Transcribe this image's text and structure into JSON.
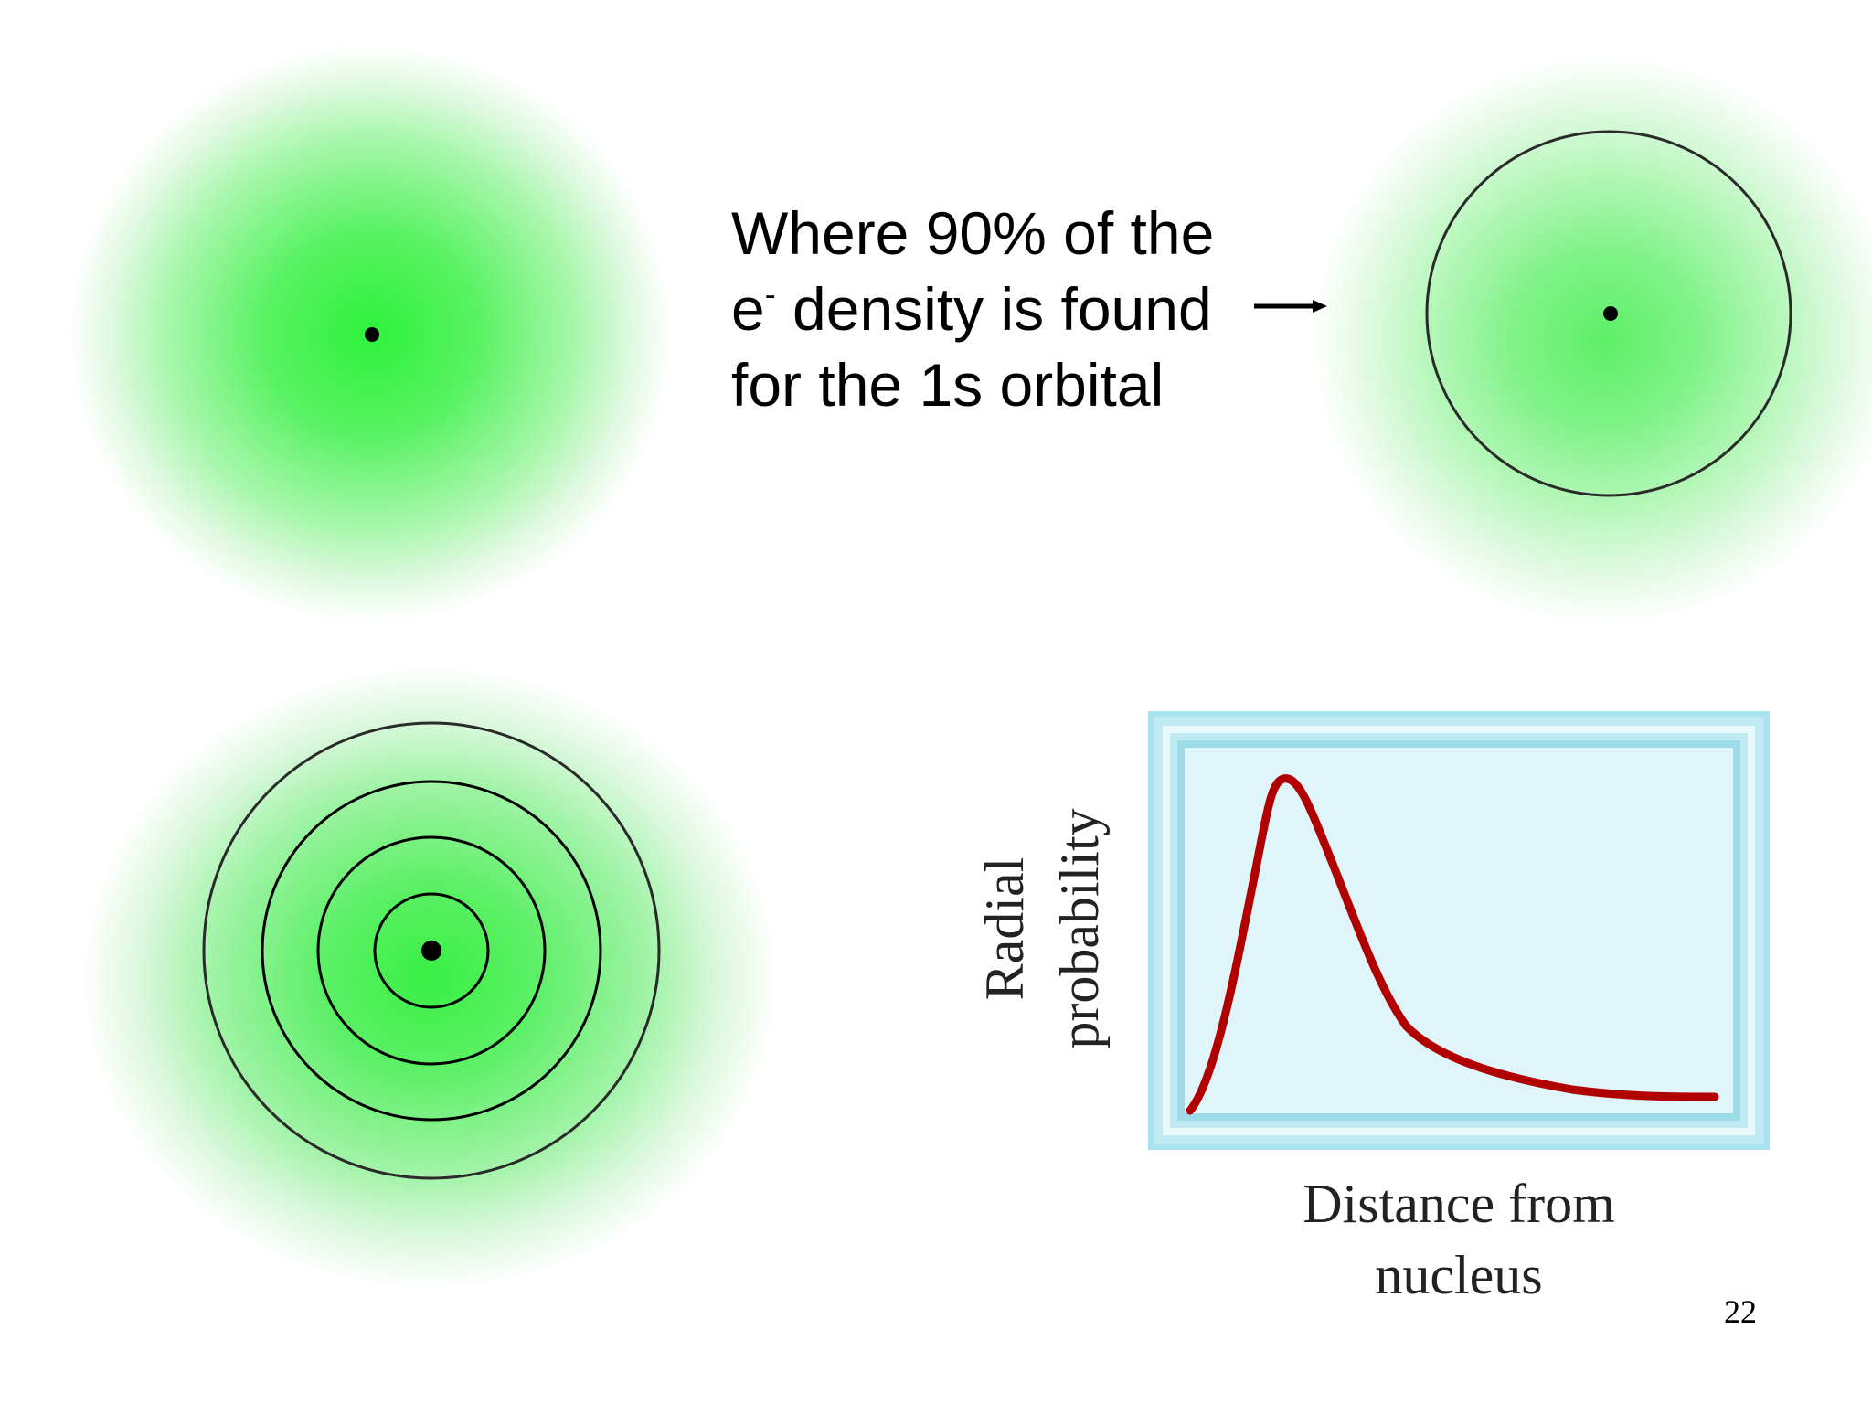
{
  "caption": {
    "line1": "Where 90% of the",
    "line2_prefix": "e",
    "line2_superscript": "-",
    "line2_suffix": " density is found",
    "line3": "for the 1s orbital"
  },
  "plot": {
    "ylabel_line1": "Radial",
    "ylabel_line2": "probability",
    "xlabel_line1": "Distance from",
    "xlabel_line2": "nucleus",
    "curve_color": "#b10000",
    "frame_color": "#a9e3ef"
  },
  "slide": {
    "page_number": "22"
  },
  "colors": {
    "cloud_core": "#2ef23c",
    "cloud_edge": "#def9df",
    "ring_color": "#222222"
  }
}
